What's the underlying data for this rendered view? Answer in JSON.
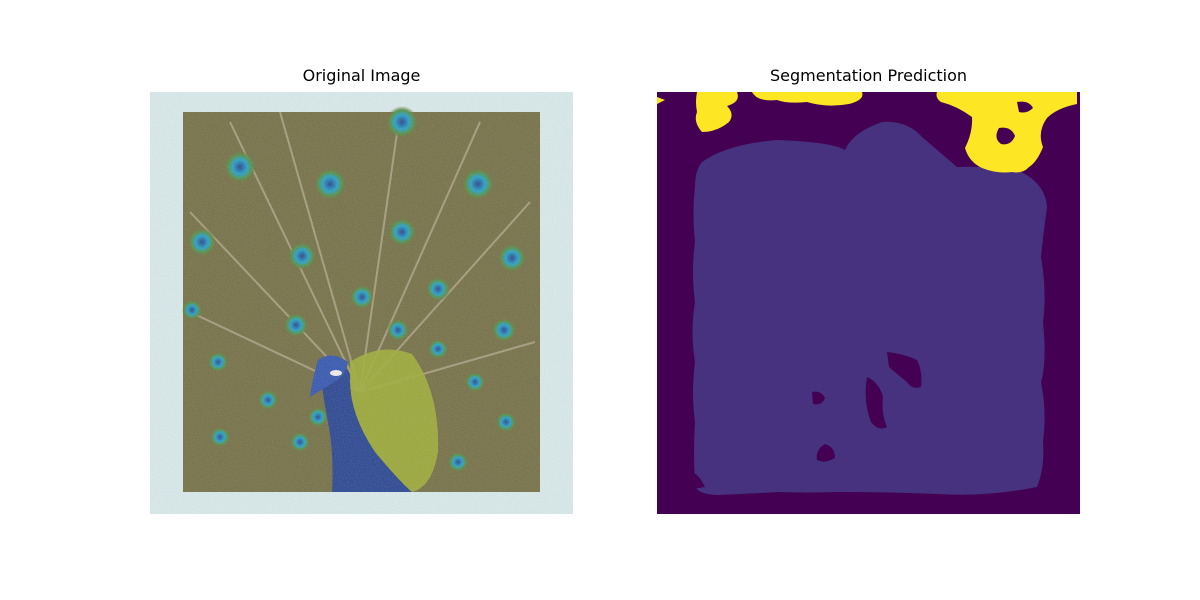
{
  "figure": {
    "left_title": "Original Image",
    "right_title": "Segmentation Prediction"
  },
  "segmentation_colors": {
    "background": "#440154",
    "object": "#46327e",
    "other": "#fde725"
  },
  "photo_colors": {
    "frame": "#dceff0",
    "feathers": "#6f6a3c",
    "neck": "#1f3d8f",
    "breast_plumage": "#9cae2c",
    "eye_ring_outer": "#4c8d3a",
    "eye_ring_inner": "#1aa0c8",
    "eye_center": "#1f3a8a"
  }
}
